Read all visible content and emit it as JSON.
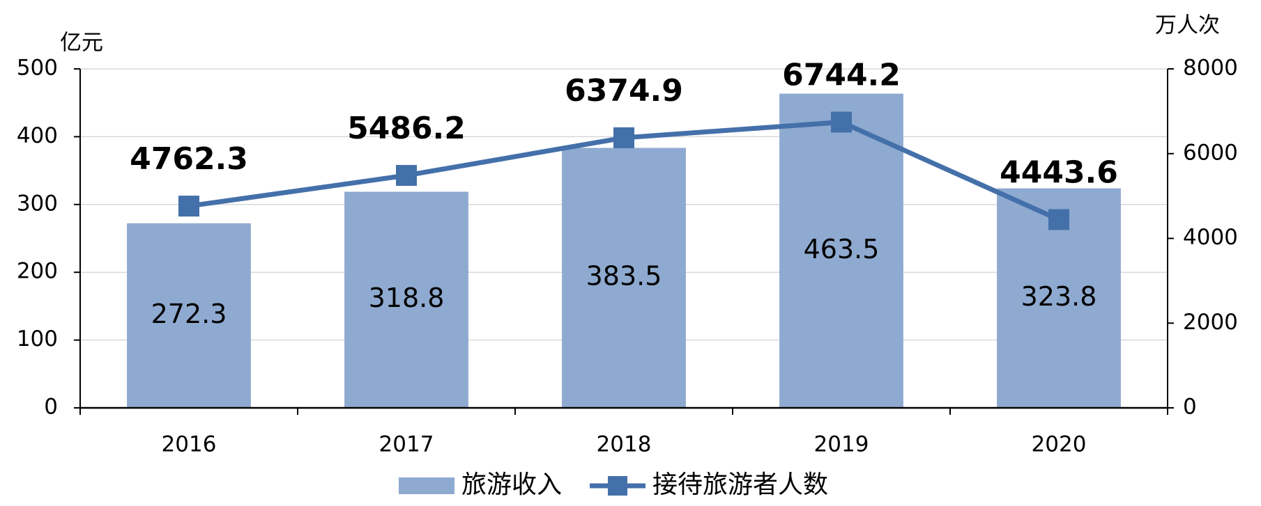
{
  "chart_data": {
    "type": "combo",
    "y_label": "亿元",
    "y2_label": "万人次",
    "categories": [
      "2016",
      "2017",
      "2018",
      "2019",
      "2020"
    ],
    "series": [
      {
        "name": "旅游收入",
        "type": "bar",
        "color": "#8faad0",
        "values": [
          272.3,
          318.8,
          383.5,
          463.5,
          323.8
        ]
      },
      {
        "name": "接待旅游者人数",
        "type": "line",
        "axis": "y2",
        "color": "#4470aa",
        "values": [
          4762.3,
          5486.2,
          6374.9,
          6744.2,
          4443.6
        ]
      }
    ],
    "ylim": [
      0,
      500
    ],
    "yticks": [
      0,
      100,
      200,
      300,
      400,
      500
    ],
    "y2lim": [
      0,
      8000
    ],
    "y2ticks": [
      0,
      2000,
      4000,
      6000,
      8000
    ],
    "grid": true
  }
}
